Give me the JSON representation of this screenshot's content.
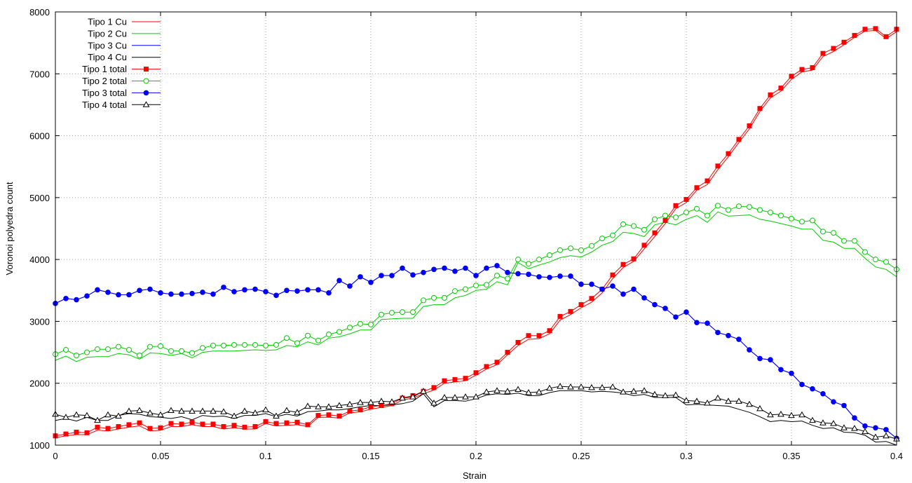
{
  "chart_data": {
    "type": "line",
    "title": "",
    "xlabel": "Strain",
    "ylabel": "Voronoi polyedra count",
    "xlim": [
      0,
      0.4
    ],
    "ylim": [
      1000,
      8000
    ],
    "grid": true,
    "legend_position": "top-left",
    "x_ticks": [
      "0",
      "0.05",
      "0.1",
      "0.15",
      "0.2",
      "0.25",
      "0.3",
      "0.35",
      "0.4"
    ],
    "y_ticks": [
      "1000",
      "2000",
      "3000",
      "4000",
      "5000",
      "6000",
      "7000",
      "8000"
    ],
    "x": [
      0,
      0.005,
      0.01,
      0.015,
      0.02,
      0.025,
      0.03,
      0.035,
      0.04,
      0.045,
      0.05,
      0.055,
      0.06,
      0.065,
      0.07,
      0.075,
      0.08,
      0.085,
      0.09,
      0.095,
      0.1,
      0.105,
      0.11,
      0.115,
      0.12,
      0.125,
      0.13,
      0.135,
      0.14,
      0.145,
      0.15,
      0.155,
      0.16,
      0.165,
      0.17,
      0.175,
      0.18,
      0.185,
      0.19,
      0.195,
      0.2,
      0.205,
      0.21,
      0.215,
      0.22,
      0.225,
      0.23,
      0.235,
      0.24,
      0.245,
      0.25,
      0.255,
      0.26,
      0.265,
      0.27,
      0.275,
      0.28,
      0.285,
      0.29,
      0.295,
      0.3,
      0.305,
      0.31,
      0.315,
      0.32,
      0.325,
      0.33,
      0.335,
      0.34,
      0.345,
      0.35,
      0.355,
      0.36,
      0.365,
      0.37,
      0.375,
      0.38,
      0.385,
      0.39,
      0.395,
      0.4
    ],
    "series": [
      {
        "name": "Tipo 1 Cu",
        "color": "#ff0000",
        "marker": "none",
        "values": [
          1120,
          1150,
          1170,
          1170,
          1240,
          1230,
          1260,
          1290,
          1310,
          1230,
          1240,
          1300,
          1300,
          1330,
          1300,
          1300,
          1260,
          1280,
          1260,
          1260,
          1350,
          1310,
          1320,
          1330,
          1300,
          1450,
          1450,
          1440,
          1520,
          1540,
          1580,
          1610,
          1640,
          1730,
          1760,
          1830,
          1890,
          2000,
          2020,
          2040,
          2130,
          2230,
          2300,
          2460,
          2610,
          2710,
          2720,
          2800,
          3020,
          3110,
          3220,
          3310,
          3460,
          3690,
          3870,
          3970,
          4170,
          4370,
          4580,
          4820,
          4920,
          5120,
          5210,
          5450,
          5660,
          5890,
          6110,
          6390,
          6610,
          6720,
          6910,
          7030,
          7060,
          7280,
          7360,
          7470,
          7590,
          7690,
          7700,
          7570,
          7680
        ]
      },
      {
        "name": "Tipo 2 Cu",
        "color": "#00cc00",
        "marker": "none",
        "values": [
          2370,
          2440,
          2350,
          2420,
          2430,
          2430,
          2480,
          2460,
          2390,
          2490,
          2480,
          2450,
          2480,
          2410,
          2500,
          2520,
          2520,
          2520,
          2530,
          2540,
          2530,
          2540,
          2610,
          2590,
          2670,
          2620,
          2730,
          2750,
          2800,
          2860,
          2860,
          3030,
          3040,
          3050,
          3050,
          3240,
          3270,
          3270,
          3380,
          3420,
          3500,
          3520,
          3640,
          3590,
          3950,
          3850,
          3910,
          3960,
          4030,
          4060,
          4040,
          4120,
          4230,
          4290,
          4440,
          4420,
          4370,
          4560,
          4600,
          4560,
          4650,
          4710,
          4600,
          4770,
          4700,
          4710,
          4720,
          4650,
          4620,
          4580,
          4540,
          4490,
          4490,
          4310,
          4280,
          4180,
          4180,
          4020,
          3880,
          3840,
          3720
        ]
      },
      {
        "name": "Tipo 3 Cu",
        "color": "#0000ff",
        "marker": "none",
        "values": [
          3290,
          3370,
          3350,
          3410,
          3510,
          3470,
          3430,
          3430,
          3500,
          3520,
          3460,
          3440,
          3440,
          3450,
          3470,
          3440,
          3550,
          3480,
          3510,
          3520,
          3480,
          3420,
          3500,
          3490,
          3510,
          3510,
          3460,
          3660,
          3570,
          3720,
          3630,
          3740,
          3740,
          3860,
          3750,
          3790,
          3840,
          3860,
          3810,
          3860,
          3740,
          3860,
          3900,
          3790,
          3770,
          3760,
          3720,
          3710,
          3730,
          3730,
          3600,
          3600,
          3520,
          3570,
          3440,
          3520,
          3380,
          3270,
          3210,
          3070,
          3150,
          2980,
          2970,
          2820,
          2770,
          2710,
          2540,
          2400,
          2380,
          2220,
          2160,
          1980,
          1910,
          1830,
          1700,
          1640,
          1440,
          1310,
          1280,
          1250,
          1110
        ]
      },
      {
        "name": "Tipo 4 Cu",
        "color": "#000000",
        "marker": "none",
        "values": [
          1400,
          1430,
          1390,
          1450,
          1400,
          1400,
          1480,
          1510,
          1500,
          1460,
          1450,
          1430,
          1460,
          1410,
          1480,
          1460,
          1470,
          1430,
          1480,
          1480,
          1510,
          1460,
          1500,
          1470,
          1540,
          1550,
          1570,
          1570,
          1590,
          1620,
          1640,
          1640,
          1650,
          1670,
          1710,
          1830,
          1620,
          1720,
          1720,
          1710,
          1750,
          1810,
          1830,
          1820,
          1840,
          1800,
          1800,
          1850,
          1880,
          1880,
          1880,
          1860,
          1870,
          1860,
          1840,
          1800,
          1820,
          1770,
          1770,
          1770,
          1650,
          1660,
          1650,
          1640,
          1630,
          1580,
          1530,
          1460,
          1380,
          1400,
          1380,
          1390,
          1320,
          1270,
          1280,
          1210,
          1200,
          1160,
          1050,
          1060,
          1000
        ]
      },
      {
        "name": "Tipo 1 total",
        "color": "#ff0000",
        "marker": "square-filled",
        "values": [
          1150,
          1180,
          1210,
          1200,
          1290,
          1270,
          1300,
          1330,
          1360,
          1270,
          1280,
          1350,
          1340,
          1370,
          1340,
          1340,
          1300,
          1320,
          1290,
          1300,
          1380,
          1350,
          1360,
          1370,
          1330,
          1480,
          1490,
          1470,
          1550,
          1570,
          1620,
          1640,
          1670,
          1760,
          1800,
          1870,
          1930,
          2040,
          2060,
          2080,
          2170,
          2270,
          2340,
          2500,
          2660,
          2770,
          2770,
          2850,
          3080,
          3160,
          3270,
          3370,
          3520,
          3750,
          3920,
          4010,
          4230,
          4430,
          4630,
          4870,
          4970,
          5160,
          5270,
          5510,
          5710,
          5940,
          6160,
          6440,
          6660,
          6770,
          6960,
          7070,
          7100,
          7330,
          7410,
          7510,
          7620,
          7720,
          7730,
          7600,
          7720
        ]
      },
      {
        "name": "Tipo 2 total",
        "color": "#00cc00",
        "marker": "circle-open",
        "values": [
          2470,
          2540,
          2450,
          2500,
          2550,
          2550,
          2590,
          2540,
          2450,
          2590,
          2600,
          2520,
          2520,
          2490,
          2570,
          2610,
          2610,
          2620,
          2620,
          2620,
          2610,
          2620,
          2730,
          2650,
          2770,
          2690,
          2790,
          2830,
          2900,
          2960,
          2950,
          3110,
          3140,
          3150,
          3150,
          3340,
          3380,
          3380,
          3490,
          3520,
          3580,
          3590,
          3740,
          3690,
          4000,
          3930,
          4000,
          4070,
          4150,
          4180,
          4150,
          4220,
          4340,
          4390,
          4570,
          4540,
          4480,
          4650,
          4710,
          4680,
          4760,
          4820,
          4710,
          4870,
          4800,
          4860,
          4850,
          4800,
          4760,
          4710,
          4660,
          4610,
          4630,
          4450,
          4430,
          4300,
          4300,
          4120,
          4000,
          3960,
          3840
        ]
      },
      {
        "name": "Tipo 3 total",
        "color": "#0000ff",
        "marker": "circle-filled",
        "values": [
          3290,
          3370,
          3350,
          3410,
          3510,
          3470,
          3430,
          3430,
          3500,
          3520,
          3460,
          3440,
          3440,
          3450,
          3470,
          3440,
          3550,
          3480,
          3510,
          3520,
          3480,
          3420,
          3500,
          3490,
          3510,
          3510,
          3460,
          3660,
          3570,
          3720,
          3630,
          3740,
          3740,
          3860,
          3750,
          3790,
          3840,
          3860,
          3810,
          3860,
          3740,
          3860,
          3900,
          3790,
          3770,
          3760,
          3720,
          3710,
          3730,
          3730,
          3600,
          3600,
          3520,
          3570,
          3440,
          3520,
          3380,
          3270,
          3210,
          3070,
          3150,
          2980,
          2970,
          2820,
          2770,
          2710,
          2540,
          2400,
          2380,
          2220,
          2160,
          1980,
          1910,
          1830,
          1700,
          1640,
          1440,
          1310,
          1280,
          1250,
          1110
        ]
      },
      {
        "name": "Tipo 4 total",
        "color": "#000000",
        "marker": "triangle-open",
        "values": [
          1500,
          1450,
          1490,
          1480,
          1400,
          1490,
          1470,
          1550,
          1560,
          1520,
          1490,
          1560,
          1550,
          1550,
          1550,
          1550,
          1540,
          1470,
          1550,
          1520,
          1570,
          1470,
          1560,
          1530,
          1630,
          1620,
          1620,
          1640,
          1660,
          1690,
          1690,
          1710,
          1700,
          1760,
          1780,
          1870,
          1680,
          1770,
          1770,
          1780,
          1780,
          1860,
          1880,
          1870,
          1900,
          1850,
          1860,
          1920,
          1950,
          1940,
          1940,
          1930,
          1930,
          1940,
          1860,
          1870,
          1880,
          1820,
          1800,
          1810,
          1720,
          1710,
          1680,
          1760,
          1710,
          1710,
          1660,
          1590,
          1490,
          1500,
          1480,
          1490,
          1400,
          1360,
          1350,
          1280,
          1270,
          1220,
          1130,
          1150,
          1100
        ]
      }
    ]
  }
}
